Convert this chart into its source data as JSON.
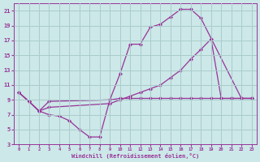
{
  "xlabel": "Windchill (Refroidissement éolien,°C)",
  "bg_color": "#cce8e8",
  "grid_color": "#aacccc",
  "line_color": "#993399",
  "xlim": [
    -0.5,
    23.5
  ],
  "ylim": [
    3,
    22
  ],
  "xticks": [
    0,
    1,
    2,
    3,
    4,
    5,
    6,
    7,
    8,
    9,
    10,
    11,
    12,
    13,
    14,
    15,
    16,
    17,
    18,
    19,
    20,
    21,
    22,
    23
  ],
  "yticks": [
    3,
    5,
    7,
    9,
    11,
    13,
    15,
    17,
    19,
    21
  ],
  "series": [
    {
      "x": [
        0,
        1,
        2,
        3,
        9,
        10,
        11,
        12,
        13,
        14,
        15,
        16,
        17,
        18,
        22,
        23
      ],
      "y": [
        10,
        8.8,
        7.5,
        8.8,
        9.0,
        12.5,
        16.5,
        16.5,
        18.8,
        19.2,
        20.2,
        21.2,
        21.2,
        20.0,
        9.2,
        9.2
      ]
    },
    {
      "x": [
        0,
        1,
        2,
        3,
        9,
        10,
        11,
        12,
        13,
        14,
        15,
        16,
        17,
        18,
        19,
        20,
        21,
        22,
        23
      ],
      "y": [
        10,
        8.8,
        7.5,
        8.0,
        8.5,
        9.0,
        9.5,
        10.0,
        10.5,
        11.0,
        12.0,
        13.0,
        14.5,
        15.8,
        17.2,
        9.2,
        9.2,
        9.2,
        9.2
      ]
    },
    {
      "x": [
        0,
        1,
        2,
        3,
        4,
        5,
        6,
        7,
        8,
        9,
        10,
        11,
        12,
        13,
        14,
        15,
        16,
        17,
        18,
        19,
        20,
        21,
        22,
        23
      ],
      "y": [
        10,
        8.8,
        7.5,
        7.0,
        6.8,
        6.2,
        5.0,
        4.0,
        4.0,
        9.0,
        9.2,
        9.2,
        9.2,
        9.2,
        9.2,
        9.2,
        9.2,
        9.2,
        9.2,
        9.2,
        9.2,
        9.2,
        9.2,
        9.2
      ]
    }
  ]
}
